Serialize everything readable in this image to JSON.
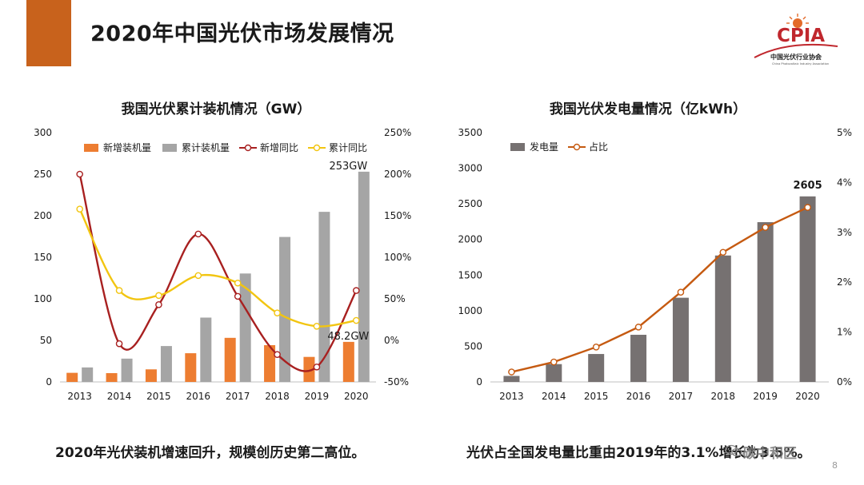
{
  "slide": {
    "title": "2020年中国光伏市场发展情况",
    "page_number": "8",
    "accent_color": "#c8621c"
  },
  "logo": {
    "name": "CPIA",
    "text_cn": "中国光伏行业协会",
    "text_en": "China Photovoltaic Industry Association",
    "color": "#c0272d"
  },
  "watermark": {
    "text": "碳中和区",
    "icon": "wechat-icon"
  },
  "captions": {
    "left": "2020年光伏装机增速回升，规模创历史第二高位。",
    "right": "光伏占全国发电量比重由2019年的3.1%增长为3.5%。"
  },
  "chart_data": [
    {
      "type": "bar",
      "title": "我国光伏累计装机情况（GW）",
      "categories": [
        "2013",
        "2014",
        "2015",
        "2016",
        "2017",
        "2018",
        "2019",
        "2020"
      ],
      "y_left": {
        "lim": [
          0,
          300
        ],
        "ticks": [
          "0",
          "50",
          "100",
          "150",
          "200",
          "250",
          "300"
        ]
      },
      "y_right": {
        "lim": [
          -50,
          250
        ],
        "ticks": [
          "-50%",
          "0%",
          "50%",
          "100%",
          "150%",
          "200%",
          "250%"
        ]
      },
      "grid": false,
      "legend_position": "top",
      "series": [
        {
          "name": "新增装机量",
          "kind": "bar",
          "axis": "left",
          "color": "#ed7d31",
          "values": [
            10.95,
            10.6,
            15.13,
            34.54,
            53.06,
            44.26,
            30.11,
            48.2
          ]
        },
        {
          "name": "累计装机量",
          "kind": "bar",
          "axis": "left",
          "color": "#a5a5a5",
          "values": [
            17.45,
            28.05,
            43.18,
            77.42,
            130.48,
            174.46,
            204.68,
            253
          ]
        },
        {
          "name": "新增同比",
          "kind": "line",
          "axis": "right",
          "color": "#a82020",
          "values": [
            200,
            -4,
            43,
            128,
            53,
            -17,
            -32,
            60
          ]
        },
        {
          "name": "累计同比",
          "kind": "line",
          "axis": "right",
          "color": "#f2c511",
          "values": [
            158,
            60,
            54,
            78,
            69,
            33,
            17,
            24
          ]
        }
      ],
      "annotations": [
        "253GW",
        "48.2GW"
      ]
    },
    {
      "type": "bar",
      "title": "我国光伏发电量情况（亿kWh）",
      "categories": [
        "2013",
        "2014",
        "2015",
        "2016",
        "2017",
        "2018",
        "2019",
        "2020"
      ],
      "y_left": {
        "lim": [
          0,
          3500
        ],
        "ticks": [
          "0",
          "500",
          "1000",
          "1500",
          "2000",
          "2500",
          "3000",
          "3500"
        ]
      },
      "y_right": {
        "lim": [
          0,
          5
        ],
        "ticks": [
          "0%",
          "1%",
          "2%",
          "3%",
          "4%",
          "5%"
        ]
      },
      "grid": false,
      "legend_position": "top-left",
      "series": [
        {
          "name": "发电量",
          "kind": "bar",
          "axis": "left",
          "color": "#767171",
          "values": [
            84,
            250,
            392,
            662,
            1182,
            1775,
            2243,
            2605
          ]
        },
        {
          "name": "占比",
          "kind": "line",
          "axis": "right",
          "color": "#c55a11",
          "values": [
            0.2,
            0.4,
            0.7,
            1.1,
            1.8,
            2.6,
            3.1,
            3.5
          ]
        }
      ],
      "annotations": [
        "2605"
      ]
    }
  ]
}
